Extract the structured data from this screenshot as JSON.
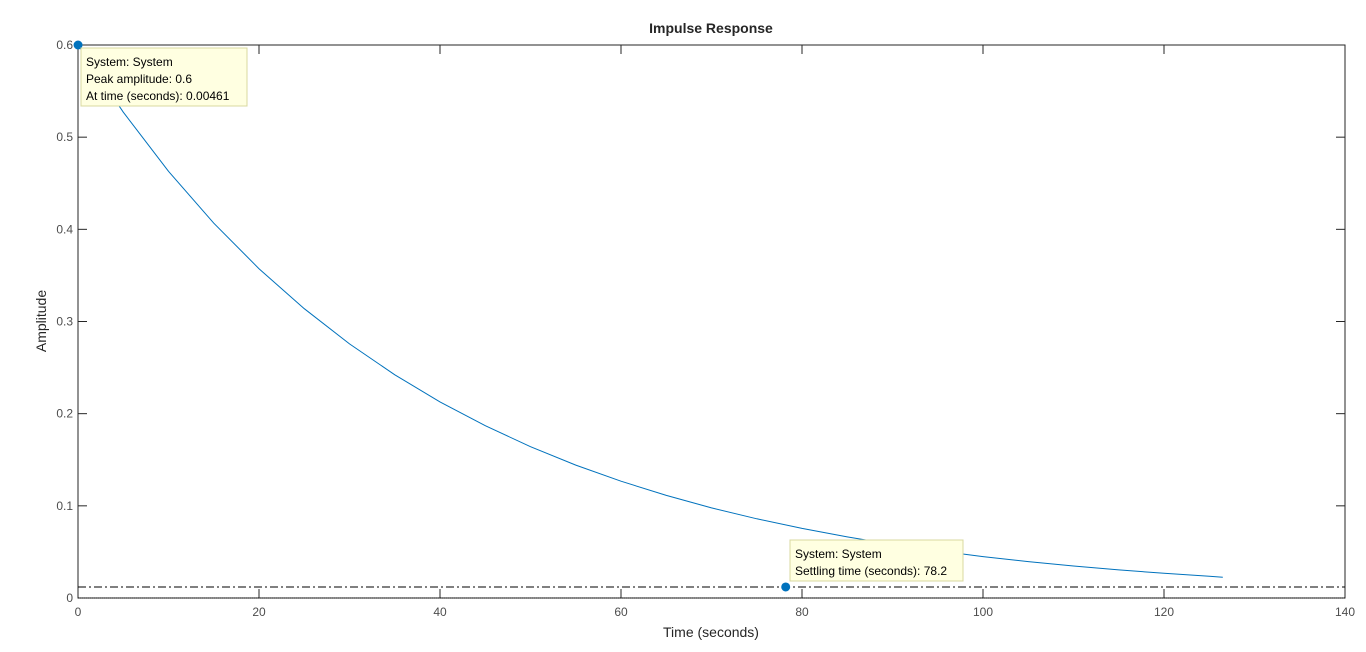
{
  "chart_data": {
    "type": "line",
    "title": "Impulse Response",
    "xlabel": "Time (seconds)",
    "ylabel": "Amplitude",
    "xlim": [
      0,
      140
    ],
    "ylim": [
      0,
      0.6
    ],
    "x_ticks": [
      0,
      20,
      40,
      60,
      80,
      100,
      120,
      140
    ],
    "x_tick_labels": [
      "0",
      "20",
      "40",
      "60",
      "80",
      "100",
      "120",
      "140"
    ],
    "y_ticks": [
      0,
      0.1,
      0.2,
      0.3,
      0.4,
      0.5,
      0.6
    ],
    "y_tick_labels": [
      "0",
      "0.1",
      "0.2",
      "0.3",
      "0.4",
      "0.5",
      "0.6"
    ],
    "grid": false,
    "series": [
      {
        "color": "#0072bd",
        "x": [
          0,
          5,
          10,
          15,
          20,
          25,
          30,
          35,
          40,
          45,
          50,
          55,
          60,
          65,
          70,
          75,
          80,
          85,
          90,
          95,
          100,
          105,
          110,
          115,
          120,
          125,
          126.5
        ],
        "y": [
          0.6,
          0.5271,
          0.463,
          0.4067,
          0.3573,
          0.3139,
          0.2757,
          0.2422,
          0.2128,
          0.1869,
          0.1642,
          0.1442,
          0.1267,
          0.1113,
          0.0978,
          0.0859,
          0.0755,
          0.0663,
          0.0582,
          0.0512,
          0.0449,
          0.0395,
          0.0347,
          0.0305,
          0.0268,
          0.0235,
          0.0226
        ]
      }
    ],
    "settling_band": 0.012,
    "baseline": 0,
    "markers": [
      {
        "name": "peak",
        "x": 0.00461,
        "y": 0.6,
        "lines": [
          "System: System",
          "Peak amplitude: 0.6",
          "At time (seconds): 0.00461"
        ]
      },
      {
        "name": "settling",
        "x": 78.2,
        "y": 0.012,
        "lines": [
          "System: System",
          "Settling time (seconds): 78.2"
        ]
      }
    ],
    "colors": {
      "line": "#0072bd",
      "datatip_bg": "#ffffe1",
      "datatip_border": "#d8d8a0",
      "reference": "#000000"
    }
  }
}
